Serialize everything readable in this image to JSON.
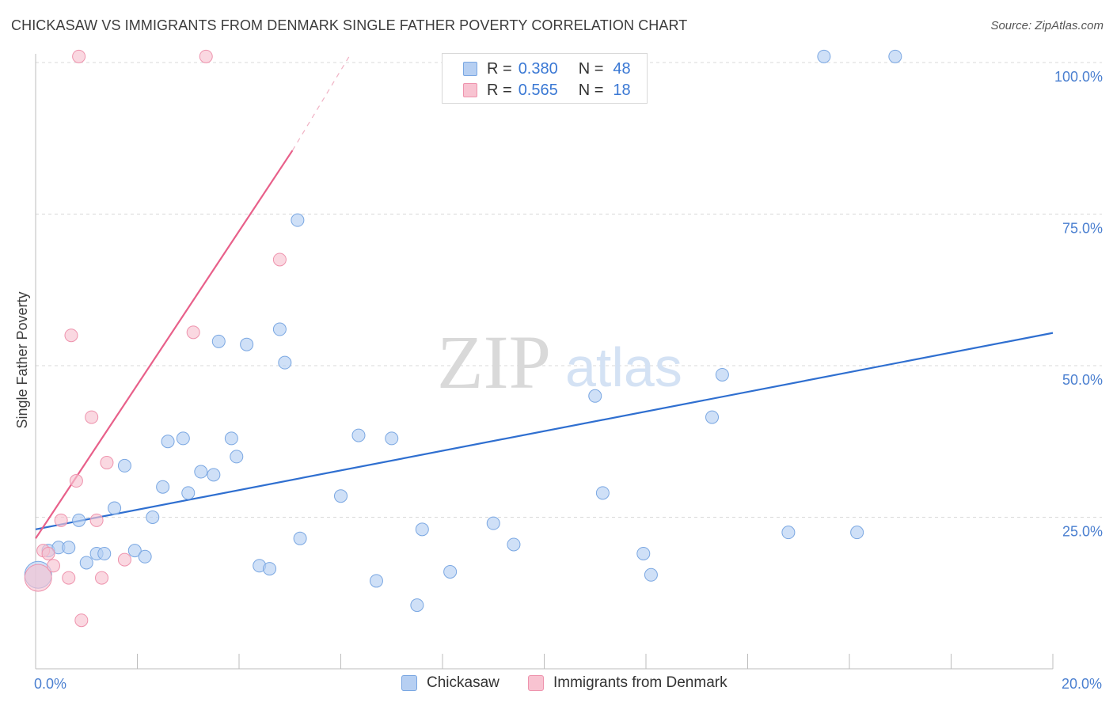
{
  "header": {
    "title": "CHICKASAW VS IMMIGRANTS FROM DENMARK SINGLE FATHER POVERTY CORRELATION CHART",
    "source": "Source: ZipAtlas.com"
  },
  "watermark": {
    "zip": "ZIP",
    "atlas": "atlas"
  },
  "legend": {
    "rows": [
      {
        "r_label": "R =",
        "r_value": "0.380",
        "n_label": "N =",
        "n_value": "48"
      },
      {
        "r_label": "R =",
        "r_value": "0.565",
        "n_label": "N =",
        "n_value": "18"
      }
    ]
  },
  "colors": {
    "chickasaw_fill": "#b6cff2",
    "chickasaw_stroke": "#7aa7e2",
    "chickasaw_line": "#2f6fd0",
    "denmark_fill": "#f8c3d1",
    "denmark_stroke": "#ee93ad",
    "denmark_line": "#e8608a",
    "tick_label": "#4a7fd0",
    "grid": "#d9d9d9"
  },
  "chart_data": {
    "type": "scatter",
    "title": "CHICKASAW VS IMMIGRANTS FROM DENMARK SINGLE FATHER POVERTY CORRELATION CHART",
    "xlabel": "",
    "ylabel": "Single Father Poverty",
    "xlim": [
      0,
      20
    ],
    "ylim": [
      0,
      105
    ],
    "x_tick_labels": [
      "0.0%",
      "20.0%"
    ],
    "y_ticks": [
      25,
      50,
      75,
      100
    ],
    "y_tick_labels": [
      "25.0%",
      "50.0%",
      "75.0%",
      "100.0%"
    ],
    "grid": true,
    "legend_position": "top-center",
    "series": [
      {
        "name": "Chickasaw",
        "r": 0.38,
        "n": 48,
        "trend": {
          "x": [
            0,
            20
          ],
          "y": [
            23.0,
            55.4
          ]
        },
        "points": [
          {
            "x": 0.05,
            "y": 15.5,
            "big": true
          },
          {
            "x": 0.25,
            "y": 19.5
          },
          {
            "x": 0.45,
            "y": 20.0
          },
          {
            "x": 0.65,
            "y": 20.0
          },
          {
            "x": 0.85,
            "y": 24.5
          },
          {
            "x": 1.0,
            "y": 17.5
          },
          {
            "x": 1.2,
            "y": 19.0
          },
          {
            "x": 1.35,
            "y": 19.0
          },
          {
            "x": 1.55,
            "y": 26.5
          },
          {
            "x": 1.75,
            "y": 33.5
          },
          {
            "x": 1.95,
            "y": 19.5
          },
          {
            "x": 2.15,
            "y": 18.5
          },
          {
            "x": 2.3,
            "y": 25.0
          },
          {
            "x": 2.5,
            "y": 30.0
          },
          {
            "x": 2.6,
            "y": 37.5
          },
          {
            "x": 2.9,
            "y": 38.0
          },
          {
            "x": 3.0,
            "y": 29.0
          },
          {
            "x": 3.25,
            "y": 32.5
          },
          {
            "x": 3.5,
            "y": 32.0
          },
          {
            "x": 3.6,
            "y": 54.0
          },
          {
            "x": 3.85,
            "y": 38.0
          },
          {
            "x": 3.95,
            "y": 35.0
          },
          {
            "x": 4.15,
            "y": 53.5
          },
          {
            "x": 4.4,
            "y": 17.0
          },
          {
            "x": 4.6,
            "y": 16.5
          },
          {
            "x": 4.8,
            "y": 56.0
          },
          {
            "x": 4.9,
            "y": 50.5
          },
          {
            "x": 5.15,
            "y": 74.0
          },
          {
            "x": 5.2,
            "y": 21.5
          },
          {
            "x": 6.0,
            "y": 28.5
          },
          {
            "x": 6.35,
            "y": 38.5
          },
          {
            "x": 6.7,
            "y": 14.5
          },
          {
            "x": 7.0,
            "y": 38.0
          },
          {
            "x": 7.5,
            "y": 10.5
          },
          {
            "x": 7.6,
            "y": 23.0
          },
          {
            "x": 8.15,
            "y": 16.0
          },
          {
            "x": 9.0,
            "y": 24.0
          },
          {
            "x": 9.4,
            "y": 20.5
          },
          {
            "x": 11.0,
            "y": 45.0
          },
          {
            "x": 11.15,
            "y": 29.0
          },
          {
            "x": 11.95,
            "y": 19.0
          },
          {
            "x": 12.1,
            "y": 15.5
          },
          {
            "x": 13.3,
            "y": 41.5
          },
          {
            "x": 13.5,
            "y": 48.5
          },
          {
            "x": 14.8,
            "y": 22.5
          },
          {
            "x": 15.5,
            "y": 101.0
          },
          {
            "x": 16.15,
            "y": 22.5
          },
          {
            "x": 16.9,
            "y": 101.0
          }
        ]
      },
      {
        "name": "Immigrants from Denmark",
        "r": 0.565,
        "n": 18,
        "trend": {
          "x": [
            0,
            5.05
          ],
          "y": [
            21.5,
            85.5
          ]
        },
        "trend_dashed": {
          "x": [
            5.05,
            6.2
          ],
          "y": [
            85.5,
            101.5
          ]
        },
        "points": [
          {
            "x": 0.05,
            "y": 15.0,
            "big": true
          },
          {
            "x": 0.15,
            "y": 19.5
          },
          {
            "x": 0.25,
            "y": 19.0
          },
          {
            "x": 0.35,
            "y": 17.0
          },
          {
            "x": 0.5,
            "y": 24.5
          },
          {
            "x": 0.65,
            "y": 15.0
          },
          {
            "x": 0.7,
            "y": 55.0
          },
          {
            "x": 0.8,
            "y": 31.0
          },
          {
            "x": 0.85,
            "y": 101.0
          },
          {
            "x": 0.9,
            "y": 8.0
          },
          {
            "x": 1.1,
            "y": 41.5
          },
          {
            "x": 1.2,
            "y": 24.5
          },
          {
            "x": 1.3,
            "y": 15.0
          },
          {
            "x": 1.4,
            "y": 34.0
          },
          {
            "x": 1.75,
            "y": 18.0
          },
          {
            "x": 3.1,
            "y": 55.5
          },
          {
            "x": 3.35,
            "y": 101.0
          },
          {
            "x": 4.8,
            "y": 67.5
          }
        ]
      }
    ]
  },
  "bottom_legend": {
    "items": [
      {
        "label": "Chickasaw"
      },
      {
        "label": "Immigrants from Denmark"
      }
    ]
  }
}
